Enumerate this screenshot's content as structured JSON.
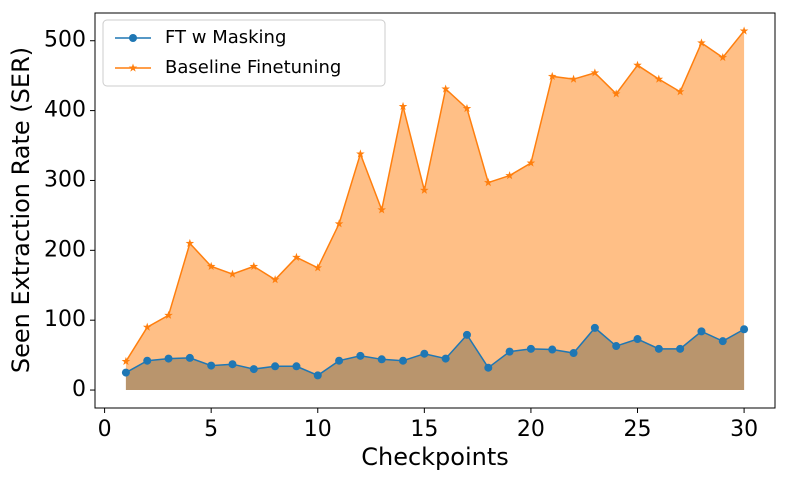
{
  "chart_data": {
    "type": "line",
    "x_label": "Checkpoints",
    "y_label": "Seen Extraction Rate (SER)",
    "x": [
      1,
      2,
      3,
      4,
      5,
      6,
      7,
      8,
      9,
      10,
      11,
      12,
      13,
      14,
      15,
      16,
      17,
      18,
      19,
      20,
      21,
      22,
      23,
      24,
      25,
      26,
      27,
      28,
      29,
      30
    ],
    "series": [
      {
        "name": "FT w Masking",
        "color": "#1f77b4",
        "marker": "circle",
        "fill_color": "#8b7a5e",
        "values": [
          25,
          42,
          45,
          46,
          35,
          37,
          30,
          34,
          34,
          21,
          42,
          49,
          44,
          42,
          52,
          45,
          79,
          32,
          55,
          59,
          58,
          53,
          89,
          63,
          73,
          59,
          59,
          84,
          70,
          87
        ]
      },
      {
        "name": "Baseline Finetuning",
        "color": "#ff7f0e",
        "marker": "star",
        "fill_color": "#ffbf86",
        "values": [
          41,
          90,
          107,
          210,
          177,
          166,
          177,
          158,
          190,
          175,
          238,
          338,
          258,
          406,
          286,
          431,
          403,
          297,
          307,
          325,
          449,
          445,
          454,
          424,
          465,
          445,
          427,
          497,
          476,
          514
        ]
      }
    ],
    "xlim": [
      -0.45,
      31.45
    ],
    "ylim": [
      -25.7,
      539.7
    ],
    "xticks": [
      0,
      5,
      10,
      15,
      20,
      25,
      30
    ],
    "yticks": [
      0,
      100,
      200,
      300,
      400,
      500
    ],
    "legend": "upper left"
  }
}
